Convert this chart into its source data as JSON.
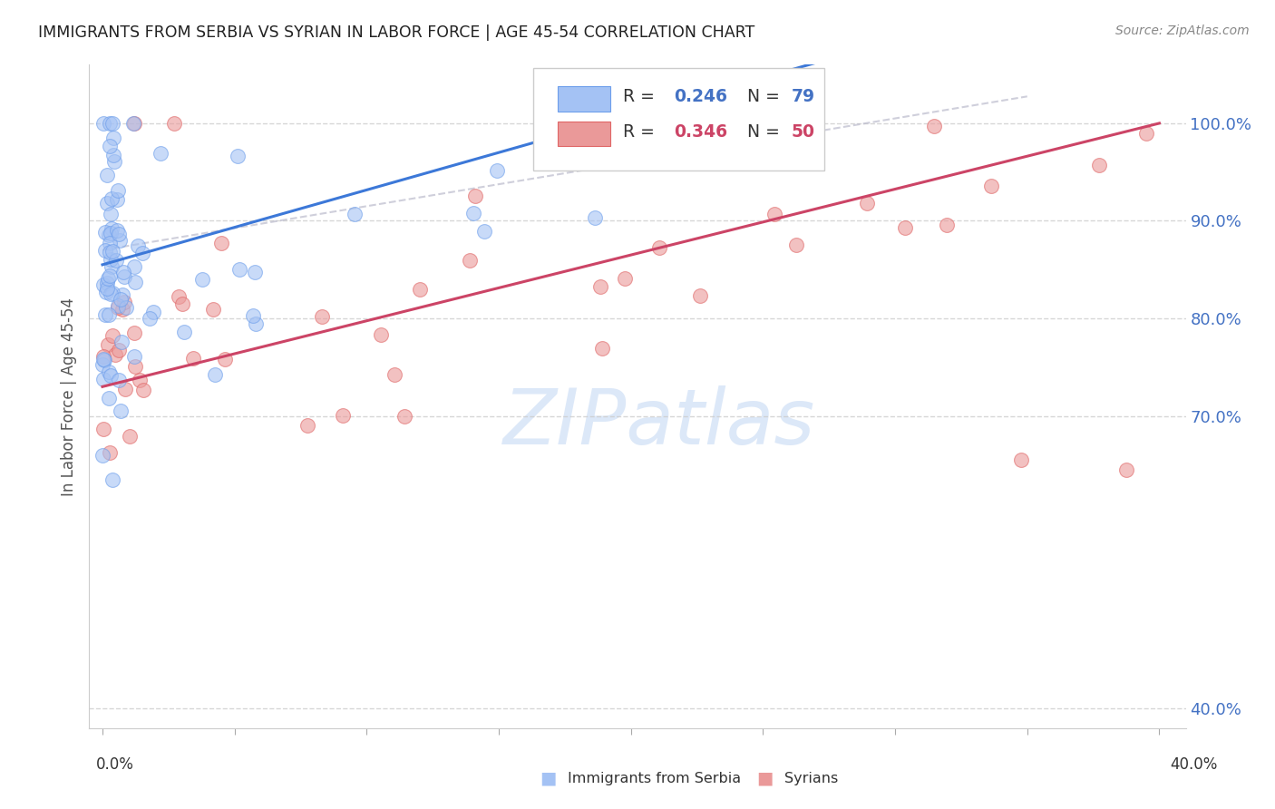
{
  "title": "IMMIGRANTS FROM SERBIA VS SYRIAN IN LABOR FORCE | AGE 45-54 CORRELATION CHART",
  "source": "Source: ZipAtlas.com",
  "ylabel": "In Labor Force | Age 45-54",
  "serbia_R": 0.246,
  "serbia_N": 79,
  "syrian_R": 0.346,
  "syrian_N": 50,
  "serbia_color": "#a4c2f4",
  "serbia_edge_color": "#6d9eeb",
  "serbia_line_color": "#3c78d8",
  "syrian_color": "#ea9999",
  "syrian_edge_color": "#e06666",
  "syrian_line_color": "#cc4466",
  "ref_line_color": "#bbbbcc",
  "ytick_values": [
    0.4,
    0.7,
    0.8,
    0.9,
    1.0
  ],
  "ytick_labels": [
    "40.0%",
    "70.0%",
    "80.0%",
    "90.0%",
    "100.0%"
  ],
  "xlim": [
    -0.005,
    0.41
  ],
  "ylim": [
    0.38,
    1.06
  ],
  "watermark_text": "ZIPatlas",
  "watermark_color": "#dce8f8",
  "background_color": "#ffffff",
  "grid_color": "#cccccc",
  "legend_box_color": "#ffffff",
  "legend_border_color": "#cccccc",
  "legend_value_color_blue": "#4472c4",
  "legend_value_color_pink": "#cc4466",
  "title_color": "#222222",
  "source_color": "#888888",
  "axis_label_color": "#555555",
  "tick_label_color": "#4472c4"
}
